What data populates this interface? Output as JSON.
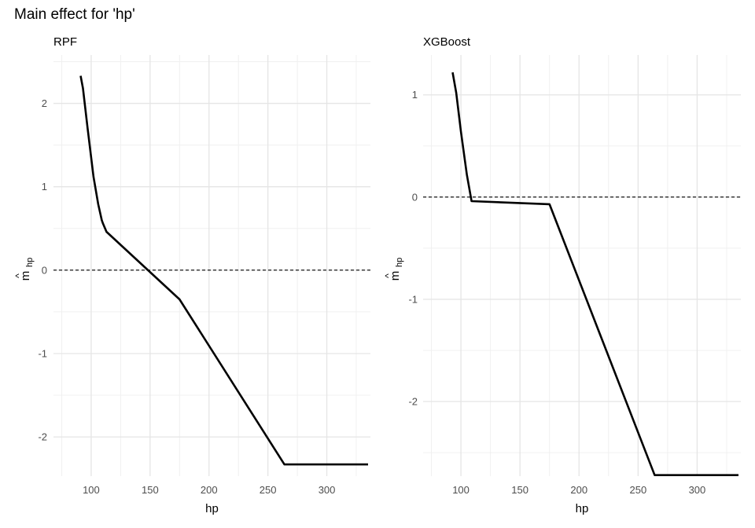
{
  "page_title": "Main effect for 'hp'",
  "chart_data": [
    {
      "type": "line",
      "title": "RPF",
      "xlabel": "hp",
      "ylabel": "m̂_hp",
      "ylabel_main": "m",
      "ylabel_hat": "^",
      "ylabel_sub": "hp",
      "xlim": [
        68,
        337
      ],
      "ylim": [
        -2.47,
        2.58
      ],
      "x_ticks": [
        100,
        150,
        200,
        250,
        300
      ],
      "x_tick_labels": [
        "100",
        "150",
        "200",
        "250",
        "300"
      ],
      "y_ticks": [
        -2,
        -1,
        0,
        1,
        2
      ],
      "y_tick_labels": [
        "-2",
        "-1",
        "0",
        "1",
        "2"
      ],
      "reference_line_y": 0,
      "grid": true,
      "series": [
        {
          "x": [
            91,
            93,
            97,
            102,
            106,
            109,
            110,
            113,
            175,
            264,
            335
          ],
          "y": [
            2.33,
            2.18,
            1.7,
            1.12,
            0.79,
            0.6,
            0.56,
            0.46,
            -0.35,
            -2.33,
            -2.33
          ]
        }
      ]
    },
    {
      "type": "line",
      "title": "XGBoost",
      "xlabel": "hp",
      "ylabel": "m̂_hp",
      "ylabel_main": "m",
      "ylabel_hat": "^",
      "ylabel_sub": "hp",
      "xlim": [
        68,
        337
      ],
      "ylim": [
        -2.73,
        1.39
      ],
      "x_ticks": [
        100,
        150,
        200,
        250,
        300
      ],
      "x_tick_labels": [
        "100",
        "150",
        "200",
        "250",
        "300"
      ],
      "y_ticks": [
        -2,
        -1,
        0,
        1
      ],
      "y_tick_labels": [
        "-2",
        "-1",
        "0",
        "1"
      ],
      "reference_line_y": 0,
      "grid": true,
      "series": [
        {
          "x": [
            93,
            96,
            100,
            105,
            109,
            175,
            264,
            335
          ],
          "y": [
            1.22,
            1.02,
            0.64,
            0.22,
            -0.04,
            -0.07,
            -2.72,
            -2.72
          ]
        }
      ]
    }
  ]
}
